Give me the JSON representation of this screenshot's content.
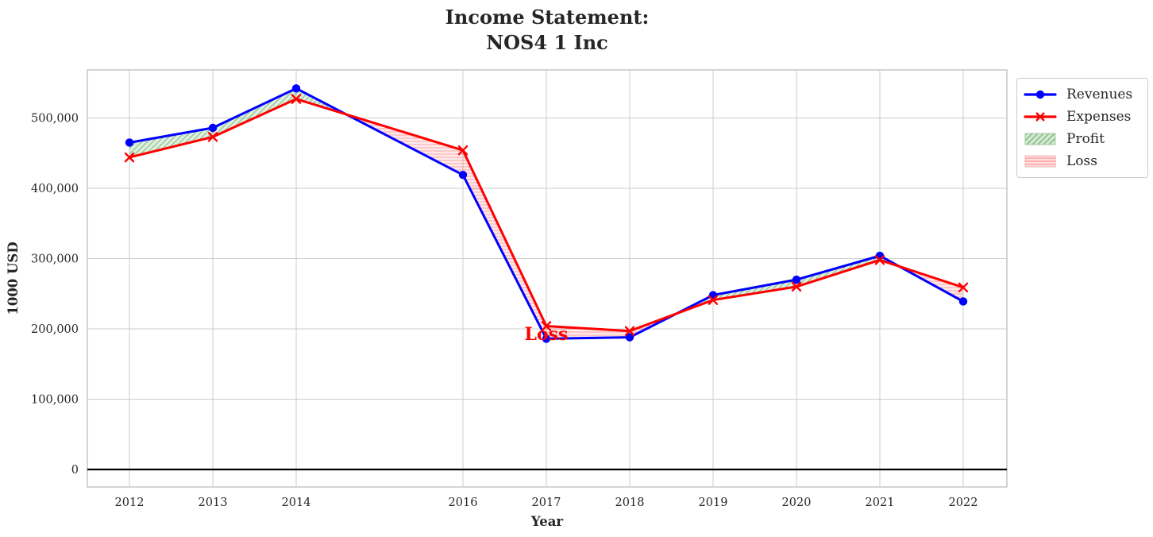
{
  "title": {
    "line1": "Income Statement:",
    "line2": "NOS4 1 Inc"
  },
  "legend": {
    "items": [
      {
        "label": "Revenues",
        "color": "#0000ff",
        "marker": "circle-on-line"
      },
      {
        "label": "Expenses",
        "color": "#ff0000",
        "marker": "x-on-line"
      },
      {
        "label": "Profit",
        "color": "#008000",
        "swatch": "green-diagonal-hatch-patch"
      },
      {
        "label": "Loss",
        "color": "#ff0000",
        "swatch": "red-horizontal-hatch-patch"
      }
    ]
  },
  "colors": {
    "revenues": "#0000ff",
    "expenses": "#ff0000",
    "profit_fill": "#008000",
    "loss_fill": "#ff0000",
    "grid": "#cccccc",
    "spine": "#c9c9c9",
    "zero_line": "#000000",
    "text": "#262626",
    "annotation": "#ff0000"
  },
  "chart_data": {
    "type": "line",
    "title": "Income Statement: NOS4 1 Inc",
    "xlabel": "Year",
    "ylabel": "1000 USD",
    "x": [
      2012,
      2013,
      2014,
      2016,
      2017,
      2018,
      2019,
      2020,
      2021,
      2022
    ],
    "series": [
      {
        "name": "Revenues",
        "color": "#0000ff",
        "marker": "circle",
        "values": [
          465000,
          486000,
          542000,
          419000,
          186000,
          188000,
          248000,
          270000,
          304000,
          239000
        ]
      },
      {
        "name": "Expenses",
        "color": "#ff0000",
        "marker": "x",
        "values": [
          444000,
          473000,
          527000,
          454000,
          204000,
          197000,
          241000,
          260000,
          298000,
          259000
        ]
      }
    ],
    "fills": [
      {
        "name": "Profit",
        "when": "revenues_above_expenses",
        "color": "green",
        "hatch": "//"
      },
      {
        "name": "Loss",
        "when": "expenses_above_revenues",
        "color": "red",
        "hatch": "-"
      }
    ],
    "annotation": {
      "text": "Loss",
      "x": 2017,
      "y": 193000,
      "color": "#ff0000"
    },
    "x_ticks": [
      2012,
      2013,
      2014,
      2016,
      2017,
      2018,
      2019,
      2020,
      2021,
      2022
    ],
    "x_tick_labels": [
      "2012",
      "2013",
      "2014",
      "2016",
      "2017",
      "2018",
      "2019",
      "2020",
      "2021",
      "2022"
    ],
    "y_ticks": [
      0,
      100000,
      200000,
      300000,
      400000,
      500000
    ],
    "y_tick_labels": [
      "0",
      "100,000",
      "200,000",
      "300,000",
      "400,000",
      "500,000"
    ],
    "xlim": [
      2011.495,
      2022.524
    ],
    "ylim": [
      -24860,
      568360
    ],
    "grid": true,
    "zero_line": true,
    "legend_position": "outside-top-right",
    "units": "1000 USD"
  }
}
